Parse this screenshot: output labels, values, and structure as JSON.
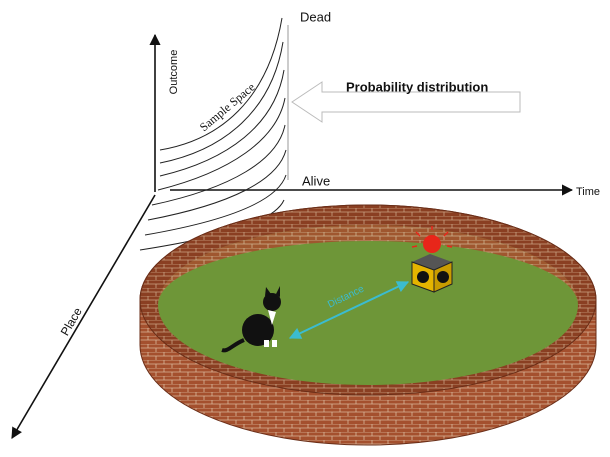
{
  "labels": {
    "dead": "Dead",
    "outcome": "Outcome",
    "sample_space": "Sample Space",
    "probability_distribution": "Probability distribution",
    "alive": "Alive",
    "time": "Time",
    "distance": "Distance",
    "place": "Place"
  }
}
